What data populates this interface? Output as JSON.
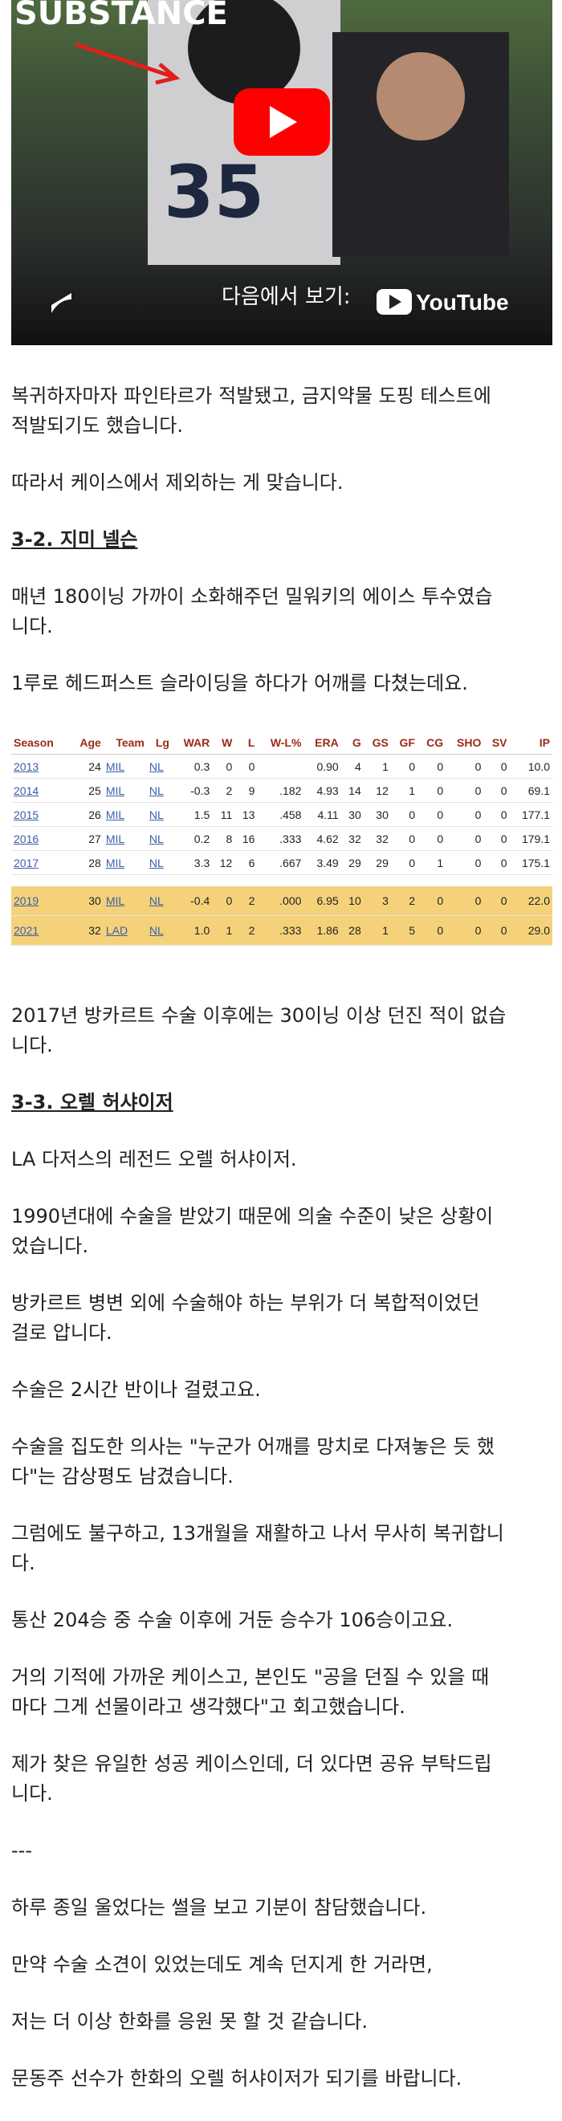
{
  "video": {
    "overlay_text": "SUBSTANCE",
    "watch_on": "다음에서 보기:",
    "youtube": "YouTube",
    "jersey": "35"
  },
  "content": [
    {
      "kind": "p",
      "lines": [
        "복귀하자마자 파인타르가 적발됐고, 금지약물 도핑 테스트에",
        "적발되기도 했습니다."
      ]
    },
    {
      "kind": "p",
      "lines": [
        "따라서 케이스에서 제외하는 게 맞습니다."
      ]
    },
    {
      "kind": "h",
      "lines": [
        "3-2. 지미 넬슨"
      ]
    },
    {
      "kind": "p",
      "lines": [
        "매년 180이닝 가까이 소화해주던 밀워키의 에이스 투수였습",
        "니다."
      ]
    },
    {
      "kind": "p",
      "lines": [
        "1루로 헤드퍼스트 슬라이딩을 하다가 어깨를 다쳤는데요."
      ]
    },
    {
      "kind": "table"
    },
    {
      "kind": "p",
      "lines": [
        "2017년 방카르트 수술 이후에는 30이닝 이상 던진 적이 없습",
        "니다."
      ]
    },
    {
      "kind": "h",
      "lines": [
        "3-3. 오렐 허샤이저"
      ]
    },
    {
      "kind": "p",
      "lines": [
        "LA 다저스의 레전드 오렐 허샤이저."
      ]
    },
    {
      "kind": "p",
      "lines": [
        "1990년대에 수술을 받았기 때문에 의술 수준이 낮은 상황이",
        "었습니다."
      ]
    },
    {
      "kind": "p",
      "lines": [
        "방카르트 병변 외에 수술해야 하는 부위가 더 복합적이었던",
        "걸로 압니다."
      ]
    },
    {
      "kind": "p",
      "lines": [
        "수술은 2시간 반이나 걸렸고요."
      ]
    },
    {
      "kind": "p",
      "lines": [
        "수술을 집도한 의사는 \"누군가 어깨를 망치로 다져놓은 듯 했",
        "다\"는 감상평도 남겼습니다."
      ]
    },
    {
      "kind": "p",
      "lines": [
        "그럼에도 불구하고, 13개월을 재활하고 나서 무사히 복귀합니",
        "다."
      ]
    },
    {
      "kind": "p",
      "lines": [
        "통산 204승 중 수술 이후에 거둔 승수가 106승이고요."
      ]
    },
    {
      "kind": "p",
      "lines": [
        "거의 기적에 가까운 케이스고, 본인도 \"공을 던질 수 있을 때",
        "마다 그게 선물이라고 생각했다\"고 회고했습니다."
      ]
    },
    {
      "kind": "p",
      "lines": [
        "제가 찾은 유일한 성공 케이스인데, 더 있다면 공유 부탁드립",
        "니다."
      ]
    },
    {
      "kind": "p",
      "lines": [
        "---"
      ]
    },
    {
      "kind": "p",
      "lines": [
        "하루 종일 울었다는 썰을 보고 기분이 참담했습니다."
      ]
    },
    {
      "kind": "p",
      "lines": [
        "만약 수술 소견이 있었는데도 계속 던지게 한 거라면,"
      ]
    },
    {
      "kind": "p",
      "lines": [
        "저는 더 이상 한화를 응원 못 할 것 같습니다."
      ]
    },
    {
      "kind": "p",
      "lines": [
        "문동주 선수가 한화의 오렐 허샤이저가 되기를 바랍니다."
      ]
    }
  ],
  "table": {
    "header": [
      "Season",
      "Age",
      "Team",
      "Lg",
      "WAR",
      "W",
      "L",
      "W-L%",
      "ERA",
      "G",
      "GS",
      "GF",
      "CG",
      "SHO",
      "SV",
      "IP"
    ],
    "rows": [
      [
        "2013",
        "24",
        "MIL",
        "NL",
        "0.3",
        "0",
        "0",
        null,
        "0.90",
        "4",
        "1",
        "0",
        "0",
        "0",
        "0",
        "10.0"
      ],
      [
        "2014",
        "25",
        "MIL",
        "NL",
        "-0.3",
        "2",
        "9",
        ".182",
        "4.93",
        "14",
        "12",
        "1",
        "0",
        "0",
        "0",
        "69.1"
      ],
      [
        "2015",
        "26",
        "MIL",
        "NL",
        "1.5",
        "11",
        "13",
        ".458",
        "4.11",
        "30",
        "30",
        "0",
        "0",
        "0",
        "0",
        "177.1"
      ],
      [
        "2016",
        "27",
        "MIL",
        "NL",
        "0.2",
        "8",
        "16",
        ".333",
        "4.62",
        "32",
        "32",
        "0",
        "0",
        "0",
        "0",
        "179.1"
      ],
      [
        "2017",
        "28",
        "MIL",
        "NL",
        "3.3",
        "12",
        "6",
        ".667",
        "3.49",
        "29",
        "29",
        "0",
        "1",
        "0",
        "0",
        "175.1"
      ]
    ],
    "highlight_rows": [
      [
        "2019",
        "30",
        "MIL",
        "NL",
        "-0.4",
        "0",
        "2",
        ".000",
        "6.95",
        "10",
        "3",
        "2",
        "0",
        "0",
        "0",
        "22.0"
      ],
      [
        "2021",
        "32",
        "LAD",
        "NL",
        "1.0",
        "1",
        "2",
        ".333",
        "1.86",
        "28",
        "1",
        "5",
        "0",
        "0",
        "0",
        "29.0"
      ]
    ]
  }
}
